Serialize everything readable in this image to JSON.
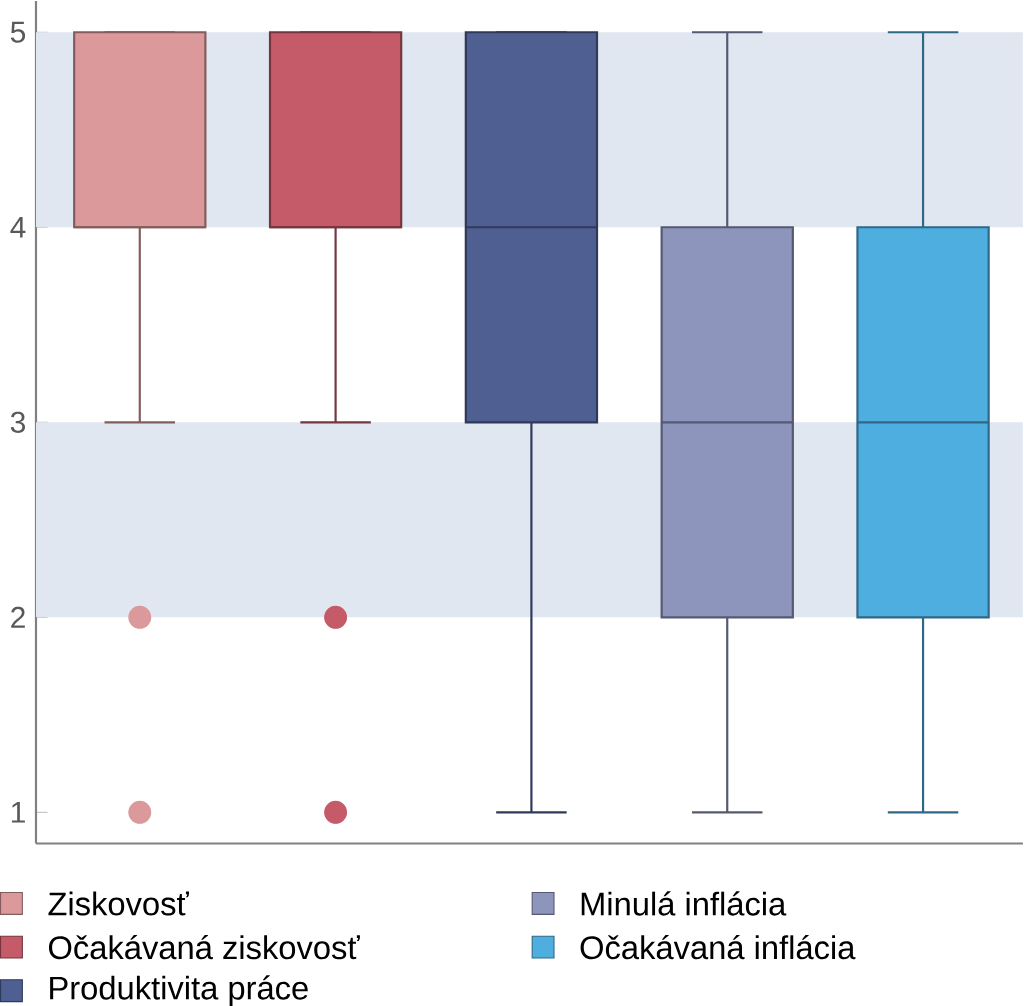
{
  "chart_data": {
    "type": "box",
    "categories": [
      null,
      null,
      null,
      null,
      null
    ],
    "series": [
      {
        "name": "Ziskovosť",
        "color": "#db999b",
        "boxes": [
          {
            "low": 3,
            "q1": 4,
            "median": 4,
            "q3": 5,
            "high": 5,
            "outliers": [
              2,
              1
            ]
          },
          null,
          null,
          null,
          null
        ]
      },
      {
        "name": "Očakávaná ziskovosť",
        "color": "#c55a69",
        "boxes": [
          null,
          {
            "low": 3,
            "q1": 4,
            "median": 4,
            "q3": 5,
            "high": 5,
            "outliers": [
              2,
              1
            ]
          },
          null,
          null,
          null
        ]
      },
      {
        "name": "Produktivita práce",
        "color": "#4f5f92",
        "boxes": [
          null,
          null,
          {
            "low": 1,
            "q1": 3,
            "median": 4,
            "q3": 5,
            "high": 5
          },
          null,
          null
        ]
      },
      {
        "name": "Minulá inflácia",
        "color": "#8e95bd",
        "boxes": [
          null,
          null,
          null,
          {
            "low": 1,
            "q1": 2,
            "median": 3,
            "q3": 4,
            "high": 5
          },
          null
        ]
      },
      {
        "name": "Očakávaná inflácia",
        "color": "#4eaee0",
        "boxes": [
          null,
          null,
          null,
          null,
          {
            "low": 1,
            "q1": 2,
            "median": 3,
            "q3": 4,
            "high": 5
          }
        ]
      }
    ],
    "ylim": [
      0.84,
      5.16
    ],
    "yticks": [
      1,
      2,
      3,
      4,
      5
    ],
    "bands": [
      {
        "axis": "y",
        "from": 4,
        "to": 5,
        "color": "#e1e7f1"
      },
      {
        "axis": "y",
        "from": 2,
        "to": 3,
        "color": "#e1e7f1"
      }
    ],
    "tick_labels": "y",
    "legend": "bottom",
    "grid": false
  }
}
